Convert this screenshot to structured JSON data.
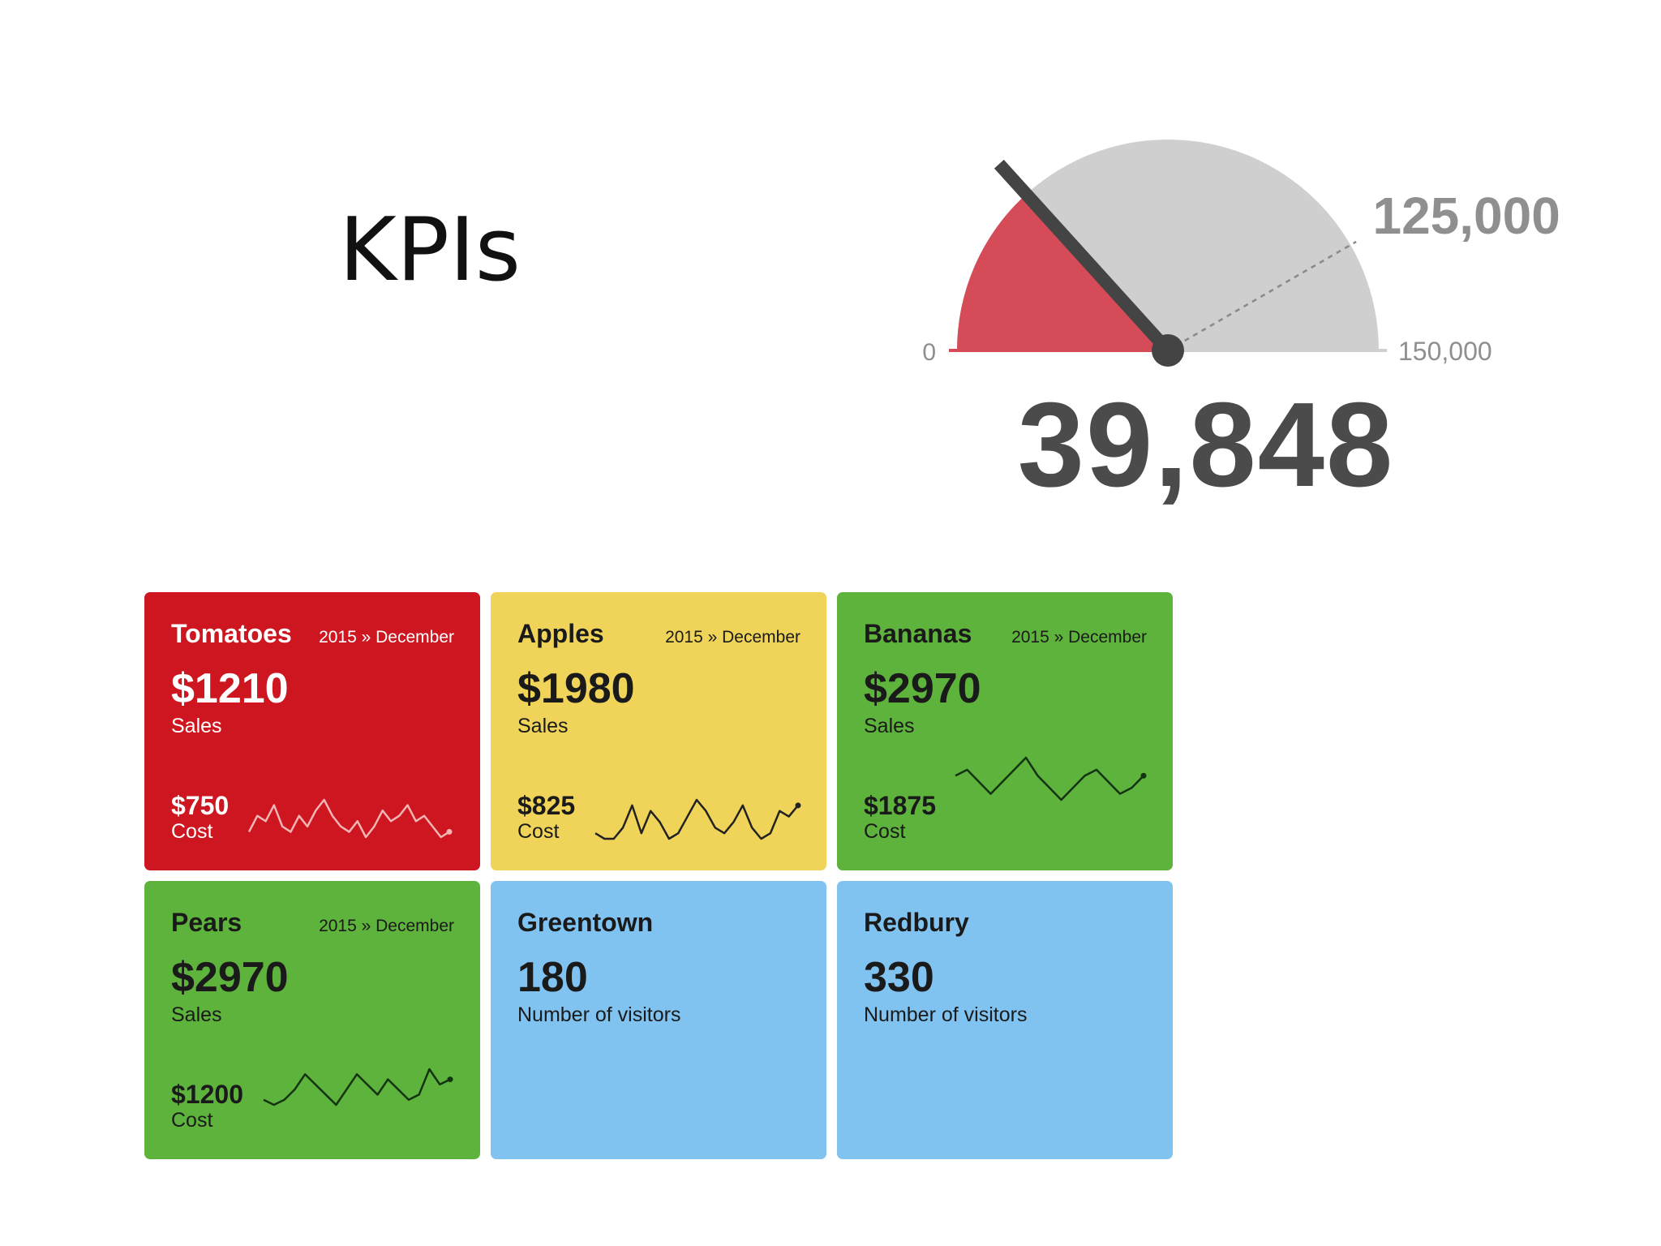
{
  "page": {
    "title": "KPIs"
  },
  "gauge": {
    "min": 0,
    "max": 150000,
    "target": 125000,
    "value": 39848,
    "min_label": "0",
    "max_label": "150,000",
    "target_label": "125,000",
    "value_label": "39,848",
    "colors": {
      "fill": "#d54b57",
      "track": "#cfcfcf",
      "needle": "#444444",
      "text": "#4b4b4b",
      "small_text": "#8f8f8f"
    }
  },
  "tiles": [
    {
      "name": "Tomatoes",
      "period": "2015 » December",
      "main_value": "$1210",
      "main_label": "Sales",
      "cost_value": "$750",
      "cost_label": "Cost",
      "bg": "#cd1620",
      "text_theme": "light",
      "spark_color": "#f3b4b4",
      "sparkline": [
        3,
        6,
        5,
        8,
        4,
        3,
        6,
        4,
        7,
        9,
        6,
        4,
        3,
        5,
        2,
        4,
        7,
        5,
        6,
        8,
        5,
        6,
        4,
        2,
        3
      ]
    },
    {
      "name": "Apples",
      "period": "2015 » December",
      "main_value": "$1980",
      "main_label": "Sales",
      "cost_value": "$825",
      "cost_label": "Cost",
      "bg": "#f0d45a",
      "text_theme": "dark",
      "spark_color": "#222222",
      "sparkline": [
        3,
        2,
        2,
        4,
        8,
        3,
        7,
        5,
        2,
        3,
        6,
        9,
        7,
        4,
        3,
        5,
        8,
        4,
        2,
        3,
        7,
        6,
        8
      ]
    },
    {
      "name": "Bananas",
      "period": "2015 » December",
      "main_value": "$2970",
      "main_label": "Sales",
      "cost_value": "$1875",
      "cost_label": "Cost",
      "bg": "#5db33b",
      "text_theme": "dark",
      "spark_color": "#143312",
      "sparkline": [
        6,
        7,
        5,
        3,
        5,
        7,
        9,
        6,
        4,
        2,
        4,
        6,
        7,
        5,
        3,
        4,
        6
      ]
    },
    {
      "name": "Pears",
      "period": "2015 » December",
      "main_value": "$2970",
      "main_label": "Sales",
      "cost_value": "$1200",
      "cost_label": "Cost",
      "bg": "#5db33b",
      "text_theme": "dark",
      "spark_color": "#143312",
      "sparkline": [
        4,
        3,
        4,
        6,
        9,
        7,
        5,
        3,
        6,
        9,
        7,
        5,
        8,
        6,
        4,
        5,
        10,
        7,
        8
      ]
    },
    {
      "name": "Greentown",
      "main_value": "180",
      "main_label": "Number of visitors",
      "bg": "#80c3f0",
      "text_theme": "dark"
    },
    {
      "name": "Redbury",
      "main_value": "330",
      "main_label": "Number of visitors",
      "bg": "#80c3f0",
      "text_theme": "dark"
    }
  ]
}
